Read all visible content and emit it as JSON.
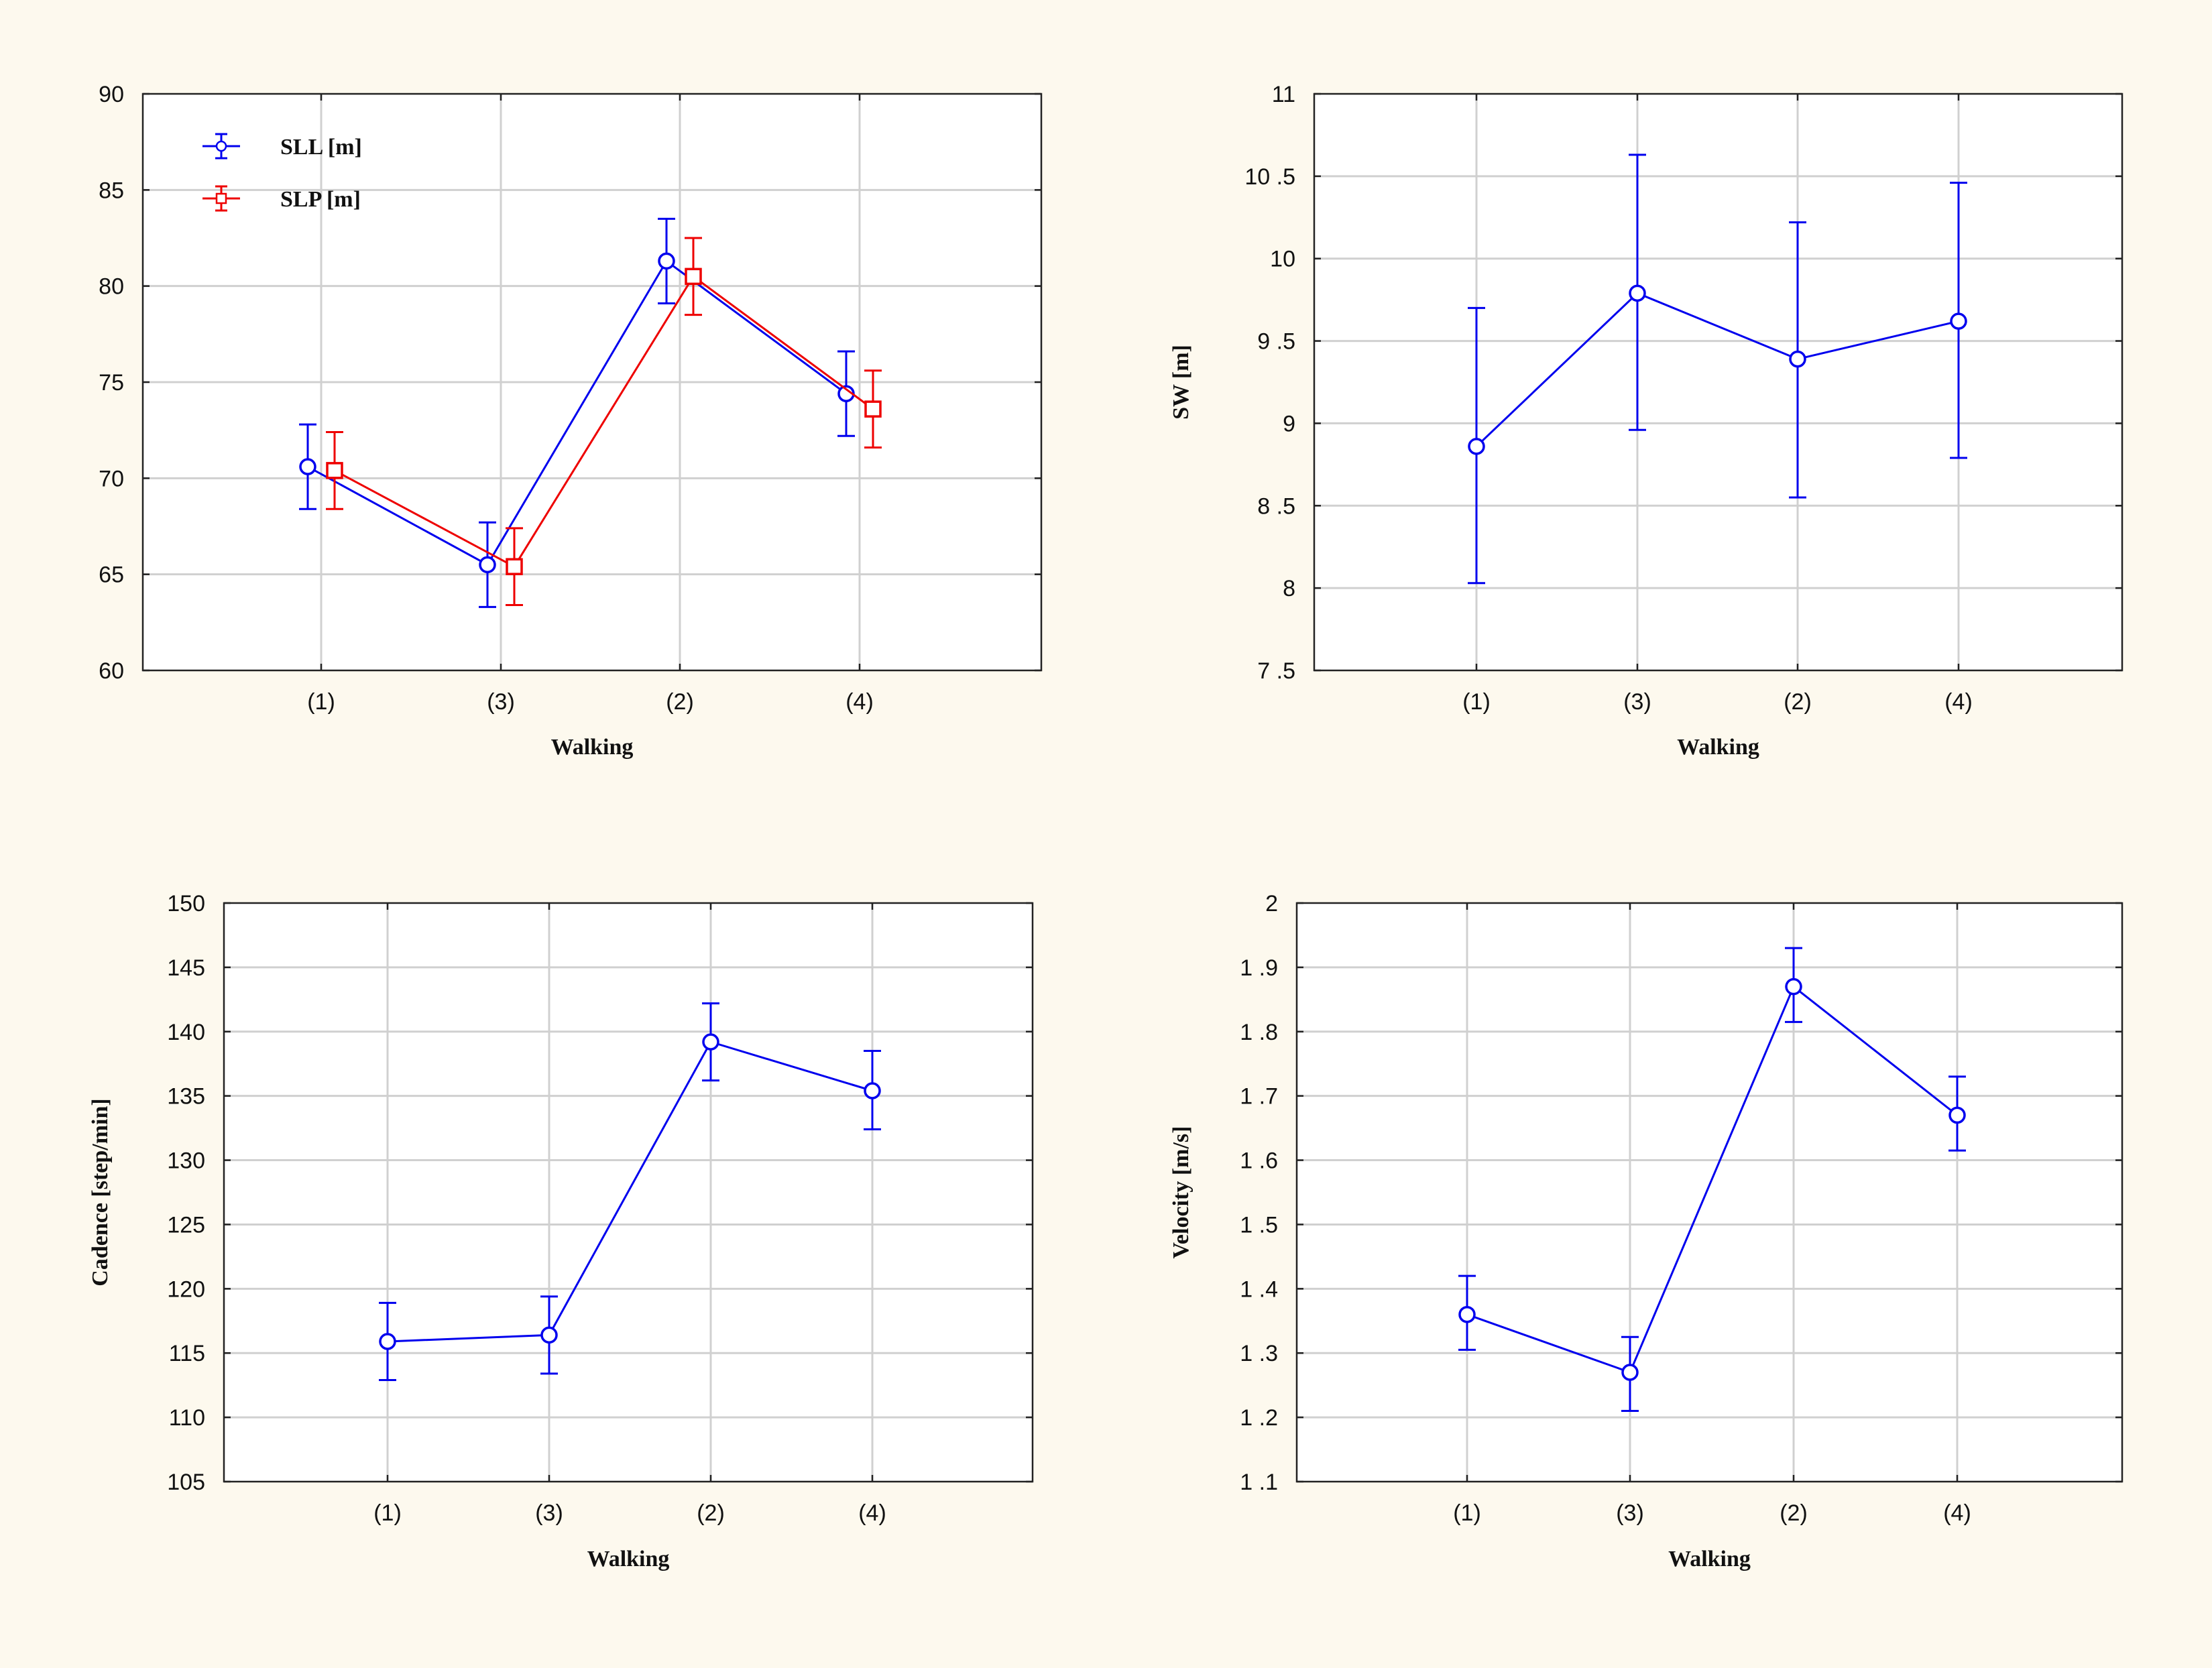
{
  "colors": {
    "background": "#fdf9ee",
    "frame": "#ffffff",
    "grid": "#d0d0d0",
    "blue": "#0000ee",
    "red": "#ee0000"
  },
  "chart_data": [
    {
      "id": "step-length",
      "type": "line",
      "categories": [
        "(1)",
        "(3)",
        "(2)",
        "(4)"
      ],
      "xlabel": "Walking",
      "ylabel": "",
      "ylim": [
        60,
        90
      ],
      "yticks": [
        60,
        65,
        70,
        75,
        80,
        85,
        90
      ],
      "ytick_labels": [
        "60",
        "65",
        "70",
        "75",
        "80",
        "85",
        "90"
      ],
      "grid": true,
      "legend_position": "top-left",
      "series": [
        {
          "name": "SLL [m]",
          "marker": "circle",
          "color": "#0000ee",
          "values": [
            70.6,
            65.5,
            81.3,
            74.4
          ],
          "lower": [
            68.4,
            63.3,
            79.1,
            72.2
          ],
          "upper": [
            72.8,
            67.7,
            83.5,
            76.6
          ]
        },
        {
          "name": "SLP [m]",
          "marker": "square",
          "color": "#ee0000",
          "values": [
            70.4,
            65.4,
            80.5,
            73.6
          ],
          "lower": [
            68.4,
            63.4,
            78.5,
            71.6
          ],
          "upper": [
            72.4,
            67.4,
            82.5,
            75.6
          ]
        }
      ]
    },
    {
      "id": "step-width",
      "type": "line",
      "categories": [
        "(1)",
        "(3)",
        "(2)",
        "(4)"
      ],
      "xlabel": "Walking",
      "ylabel": "SW [m]",
      "ylim": [
        7.5,
        11
      ],
      "yticks": [
        7.5,
        8,
        8.5,
        9,
        9.5,
        10,
        10.5,
        11
      ],
      "ytick_labels": [
        "7 .5",
        "8",
        "8 .5",
        "9",
        "9 .5",
        "10",
        "10 .5",
        "11"
      ],
      "grid": true,
      "series": [
        {
          "name": "SW [m]",
          "marker": "circle",
          "color": "#0000ee",
          "values": [
            8.86,
            9.79,
            9.39,
            9.62
          ],
          "lower": [
            8.03,
            8.96,
            8.55,
            8.79
          ],
          "upper": [
            9.7,
            10.63,
            10.22,
            10.46
          ]
        }
      ]
    },
    {
      "id": "cadence",
      "type": "line",
      "categories": [
        "(1)",
        "(3)",
        "(2)",
        "(4)"
      ],
      "xlabel": "Walking",
      "ylabel": "Cadence [step/min]",
      "ylim": [
        105,
        150
      ],
      "yticks": [
        105,
        110,
        115,
        120,
        125,
        130,
        135,
        140,
        145,
        150
      ],
      "ytick_labels": [
        "105",
        "110",
        "115",
        "120",
        "125",
        "130",
        "135",
        "140",
        "145",
        "150"
      ],
      "grid": true,
      "series": [
        {
          "name": "Cadence [step/min]",
          "marker": "circle",
          "color": "#0000ee",
          "values": [
            115.9,
            116.4,
            139.2,
            135.4
          ],
          "lower": [
            112.9,
            113.4,
            136.2,
            132.4
          ],
          "upper": [
            118.9,
            119.4,
            142.2,
            138.5
          ]
        }
      ]
    },
    {
      "id": "velocity",
      "type": "line",
      "categories": [
        "(1)",
        "(3)",
        "(2)",
        "(4)"
      ],
      "xlabel": "Walking",
      "ylabel": "Velocity [m/s]",
      "ylim": [
        1.1,
        2
      ],
      "yticks": [
        1.1,
        1.2,
        1.3,
        1.4,
        1.5,
        1.6,
        1.7,
        1.8,
        1.9,
        2
      ],
      "ytick_labels": [
        "1 .1",
        "1 .2",
        "1 .3",
        "1 .4",
        "1 .5",
        "1 .6",
        "1 .7",
        "1 .8",
        "1 .9",
        "2"
      ],
      "grid": true,
      "series": [
        {
          "name": "Velocity [m/s]",
          "marker": "circle",
          "color": "#0000ee",
          "values": [
            1.36,
            1.27,
            1.87,
            1.67
          ],
          "lower": [
            1.305,
            1.21,
            1.815,
            1.615
          ],
          "upper": [
            1.42,
            1.325,
            1.93,
            1.73
          ]
        }
      ]
    }
  ]
}
